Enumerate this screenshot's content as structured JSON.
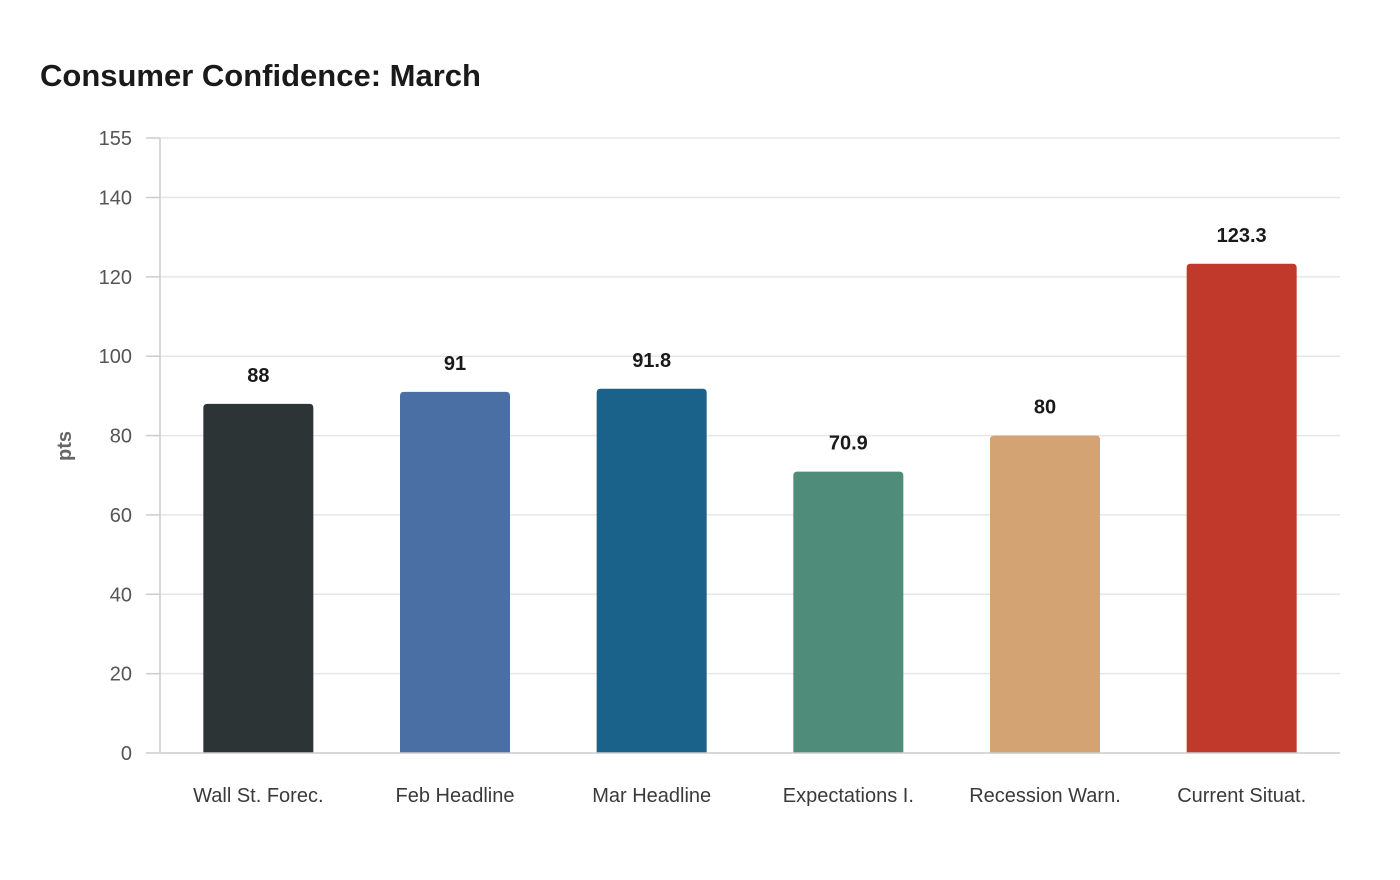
{
  "chart_data": {
    "type": "bar",
    "title": "Consumer Confidence: March",
    "ylabel": "pts",
    "xlabel": "",
    "categories": [
      "Wall St. Forec.",
      "Feb Headline",
      "Mar Headline",
      "Expectations I.",
      "Recession Warn.",
      "Current Situat."
    ],
    "values": [
      88,
      91,
      91.8,
      70.9,
      80,
      123.3
    ],
    "value_labels": [
      "88",
      "91",
      "91.8",
      "70.9",
      "80",
      "123.3"
    ],
    "colors": [
      "#2d3436",
      "#4a6fa5",
      "#1a6289",
      "#4f8d7a",
      "#d4a373",
      "#c0392b"
    ],
    "ylim": [
      0,
      155
    ],
    "yticks": [
      0,
      20,
      40,
      60,
      80,
      100,
      120,
      140,
      155
    ],
    "grid": true,
    "legend": "none"
  }
}
